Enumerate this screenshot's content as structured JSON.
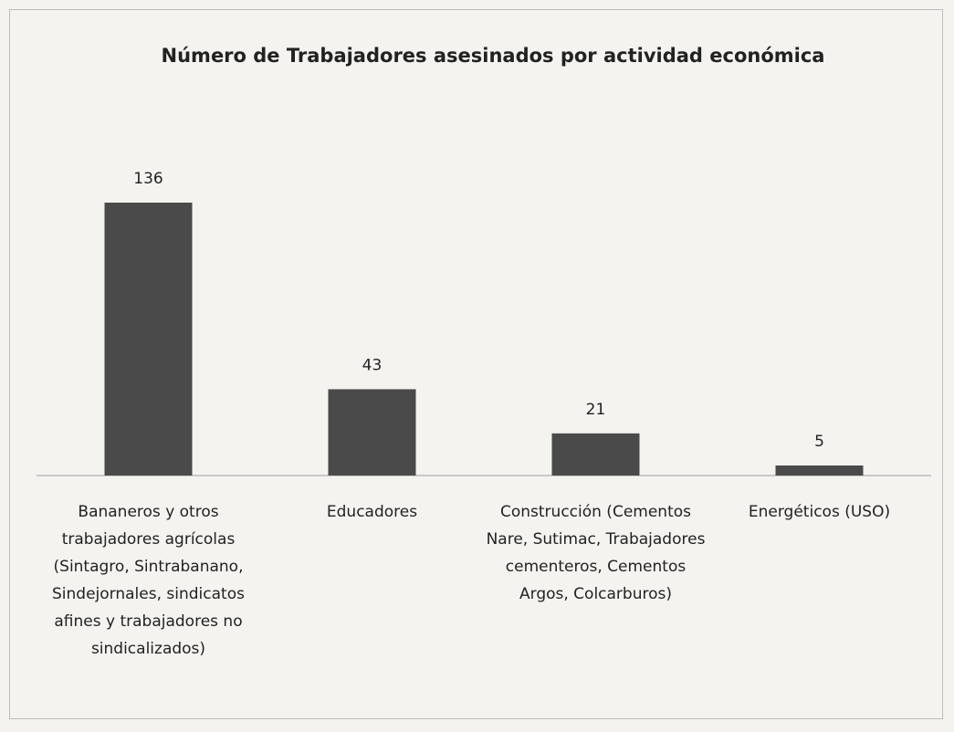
{
  "chart_data": {
    "type": "bar",
    "title": "Número de Trabajadores asesinados por actividad económica",
    "categories": [
      "Bananeros y otros trabajadores agrícolas (Sintagro, Sintrabanano, Sindejornales, sindicatos afines y trabajadores no sindicalizados)",
      "Educadores",
      "Construcción (Cementos Nare, Sutimac, Trabajadores cementeros, Cementos Argos, Colcarburos)",
      "Energéticos (USO)"
    ],
    "values": [
      136,
      43,
      21,
      5
    ],
    "color": "#4a4a4a"
  }
}
